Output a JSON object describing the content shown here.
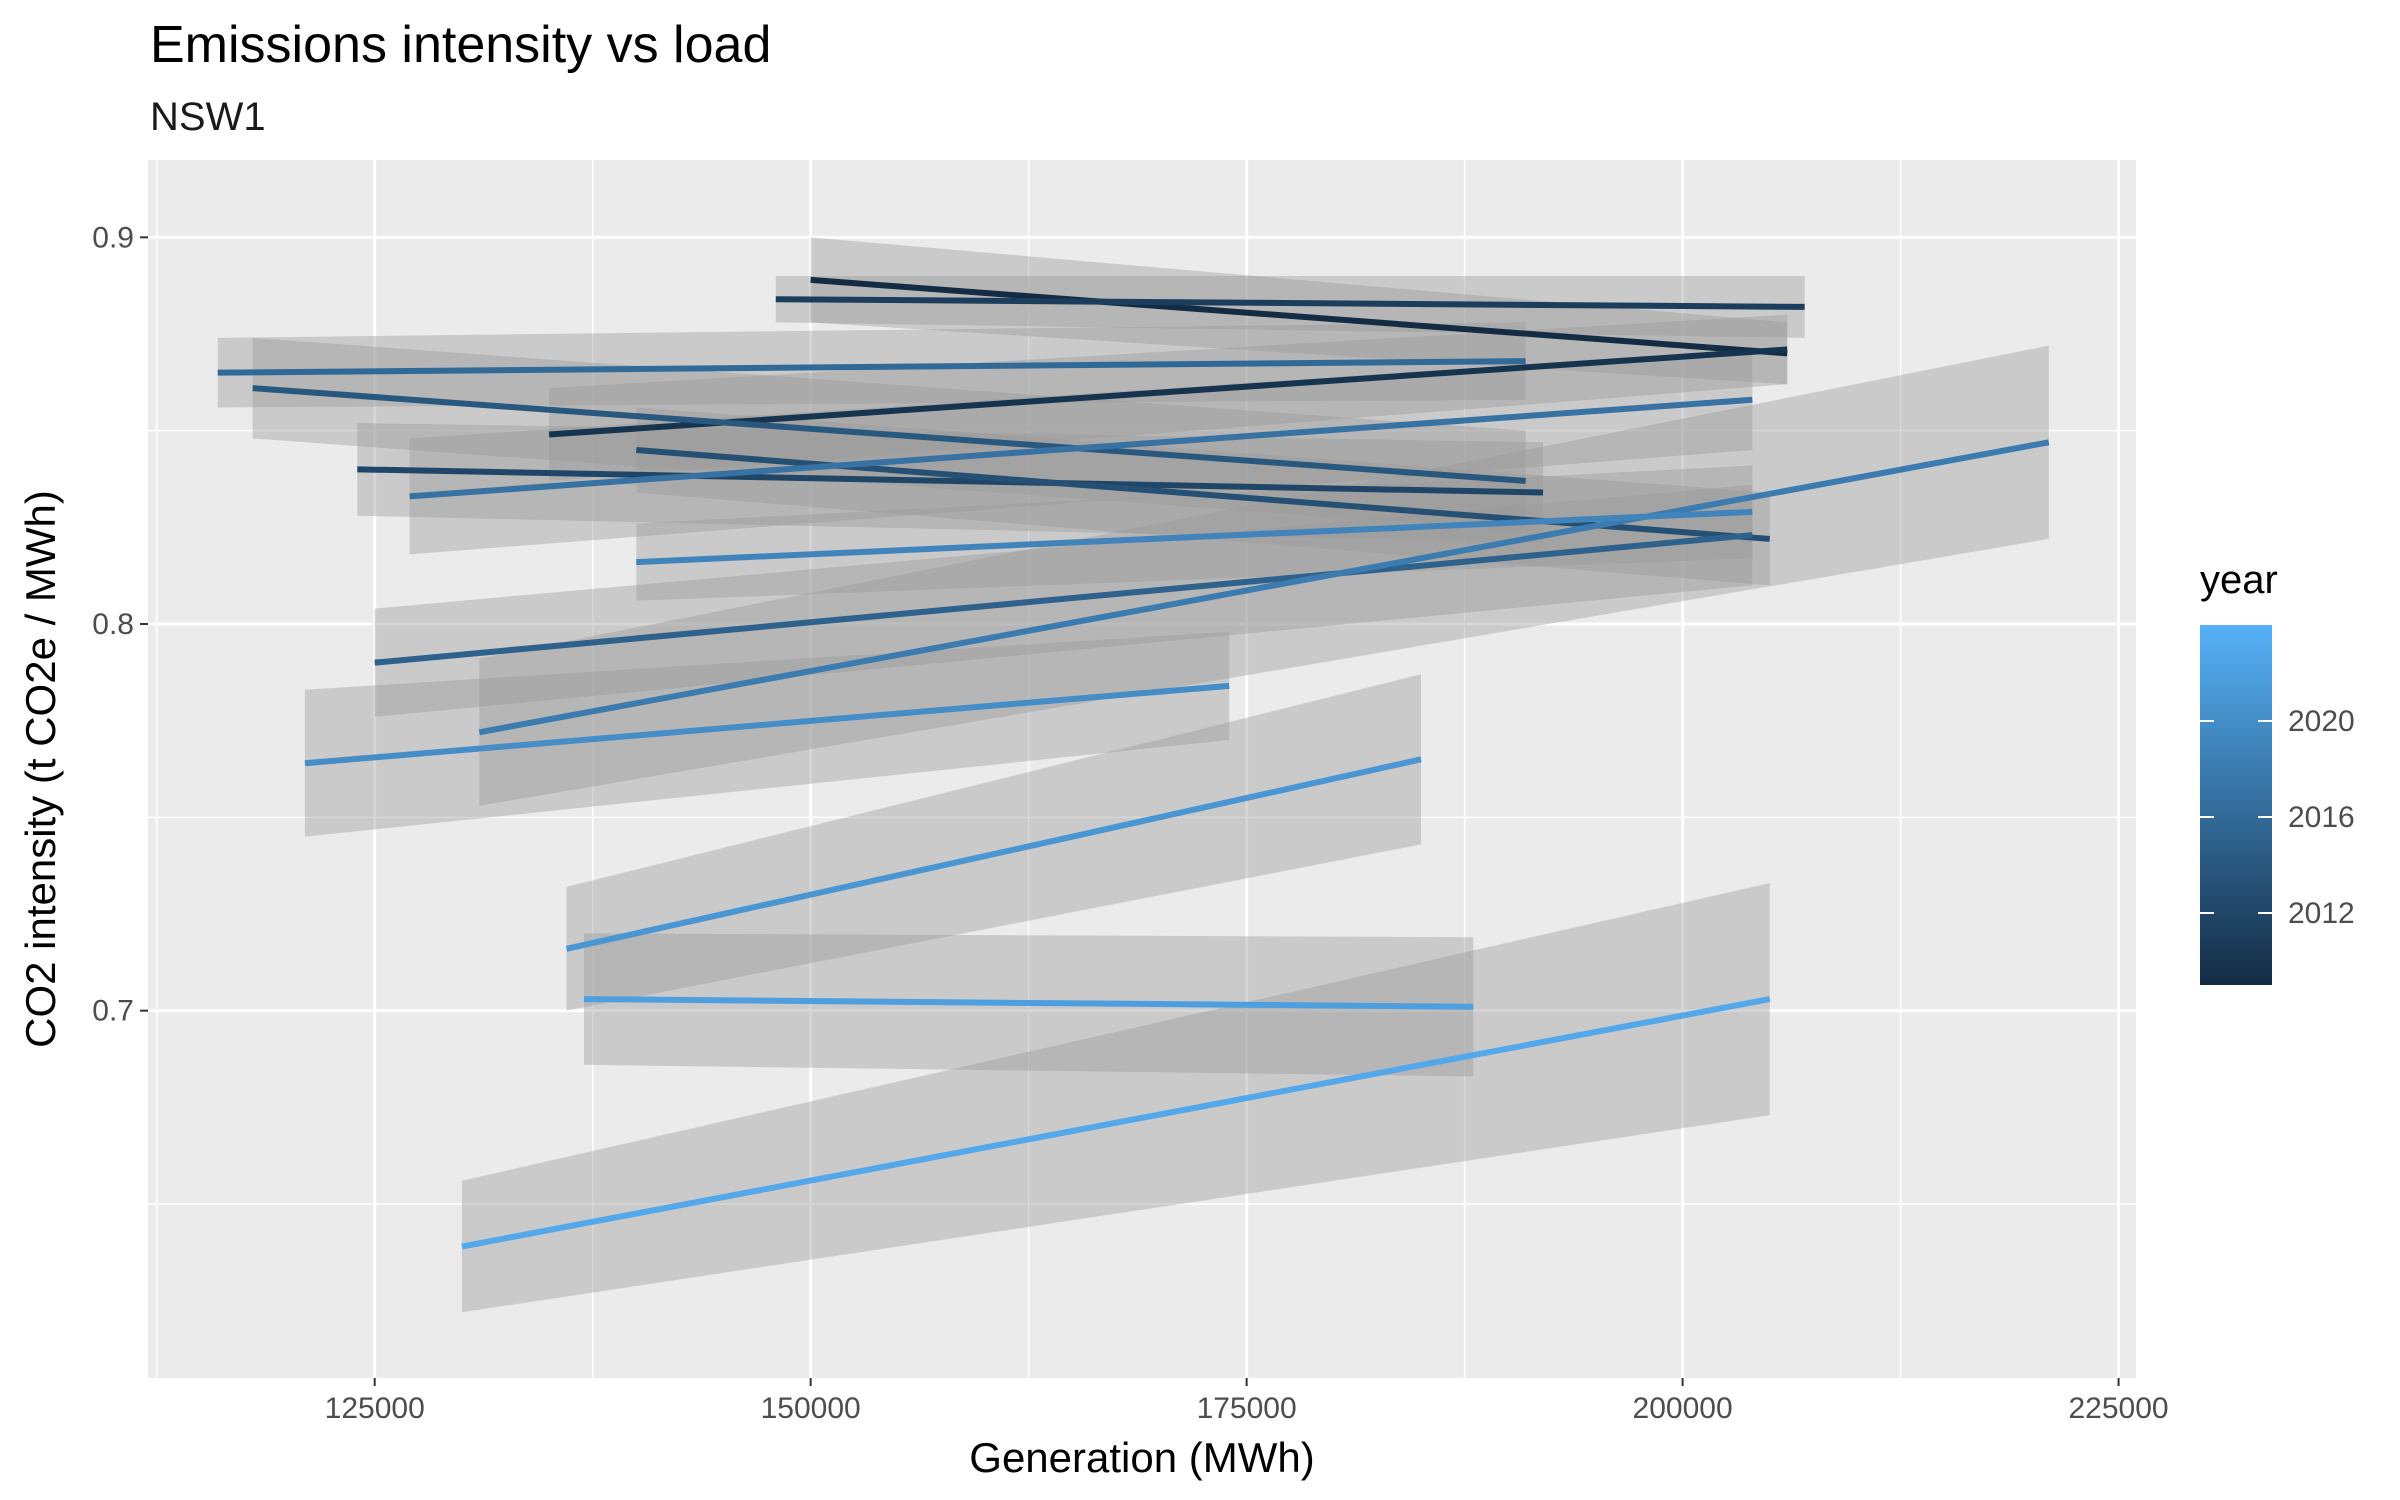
{
  "chart_data": {
    "type": "line",
    "title": "Emissions intensity vs load",
    "subtitle": "NSW1",
    "xlabel": "Generation (MWh)",
    "ylabel": "CO2 intensity (t CO2e / MWh)",
    "xlim": [
      112000,
      226000
    ],
    "ylim": [
      0.605,
      0.92
    ],
    "xticks": [
      125000,
      150000,
      175000,
      200000,
      225000
    ],
    "xtick_labels": [
      "125000",
      "150000",
      "175000",
      "200000",
      "225000"
    ],
    "yticks": [
      0.7,
      0.8,
      0.9
    ],
    "ytick_labels": [
      "0.7",
      "0.8",
      "0.9"
    ],
    "grid": true,
    "background": "#ebebeb",
    "ribbon_color": "#999999",
    "legend": {
      "title": "year",
      "placement": "right",
      "type": "colorbar",
      "range": [
        2009,
        2024
      ],
      "ticks": [
        2012,
        2016,
        2020
      ],
      "tick_labels": [
        "2012",
        "2016",
        "2020"
      ],
      "color_low": "#132B43",
      "color_high": "#56B1F7"
    },
    "series": [
      {
        "year": 2009,
        "x": [
          150000,
          206000
        ],
        "y": [
          0.889,
          0.87
        ],
        "ci_low": [
          0.878,
          0.862
        ],
        "ci_high": [
          0.9,
          0.878
        ]
      },
      {
        "year": 2010,
        "x": [
          135000,
          206000
        ],
        "y": [
          0.849,
          0.871
        ],
        "ci_low": [
          0.837,
          0.862
        ],
        "ci_high": [
          0.861,
          0.88
        ]
      },
      {
        "year": 2011,
        "x": [
          148000,
          207000
        ],
        "y": [
          0.884,
          0.882
        ],
        "ci_low": [
          0.878,
          0.874
        ],
        "ci_high": [
          0.89,
          0.89
        ]
      },
      {
        "year": 2012,
        "x": [
          124000,
          192000
        ],
        "y": [
          0.84,
          0.834
        ],
        "ci_low": [
          0.828,
          0.821
        ],
        "ci_high": [
          0.852,
          0.847
        ]
      },
      {
        "year": 2013,
        "x": [
          140000,
          205000
        ],
        "y": [
          0.845,
          0.822
        ],
        "ci_low": [
          0.834,
          0.81
        ],
        "ci_high": [
          0.856,
          0.834
        ]
      },
      {
        "year": 2014,
        "x": [
          118000,
          191000
        ],
        "y": [
          0.861,
          0.837
        ],
        "ci_low": [
          0.848,
          0.824
        ],
        "ci_high": [
          0.874,
          0.85
        ]
      },
      {
        "year": 2015,
        "x": [
          125000,
          204000
        ],
        "y": [
          0.79,
          0.823
        ],
        "ci_low": [
          0.776,
          0.81
        ],
        "ci_high": [
          0.804,
          0.836
        ]
      },
      {
        "year": 2016,
        "x": [
          116000,
          191000
        ],
        "y": [
          0.865,
          0.868
        ],
        "ci_low": [
          0.856,
          0.858
        ],
        "ci_high": [
          0.874,
          0.878
        ]
      },
      {
        "year": 2017,
        "x": [
          127000,
          204000
        ],
        "y": [
          0.833,
          0.858
        ],
        "ci_low": [
          0.818,
          0.845
        ],
        "ci_high": [
          0.848,
          0.871
        ]
      },
      {
        "year": 2018,
        "x": [
          131000,
          221000
        ],
        "y": [
          0.772,
          0.847
        ],
        "ci_low": [
          0.753,
          0.822
        ],
        "ci_high": [
          0.791,
          0.872
        ]
      },
      {
        "year": 2019,
        "x": [
          140000,
          204000
        ],
        "y": [
          0.816,
          0.829
        ],
        "ci_low": [
          0.806,
          0.817
        ],
        "ci_high": [
          0.826,
          0.841
        ]
      },
      {
        "year": 2020,
        "x": [
          121000,
          174000
        ],
        "y": [
          0.764,
          0.784
        ],
        "ci_low": [
          0.745,
          0.77
        ],
        "ci_high": [
          0.783,
          0.798
        ]
      },
      {
        "year": 2021,
        "x": [
          136000,
          185000
        ],
        "y": [
          0.716,
          0.765
        ],
        "ci_low": [
          0.7,
          0.743
        ],
        "ci_high": [
          0.732,
          0.787
        ]
      },
      {
        "year": 2022,
        "x": [
          137000,
          188000
        ],
        "y": [
          0.703,
          0.701
        ],
        "ci_low": [
          0.686,
          0.683
        ],
        "ci_high": [
          0.72,
          0.719
        ]
      },
      {
        "year": 2023,
        "x": [
          130000,
          205000
        ],
        "y": [
          0.639,
          0.703
        ],
        "ci_low": [
          0.622,
          0.673
        ],
        "ci_high": [
          0.656,
          0.733
        ]
      }
    ]
  }
}
